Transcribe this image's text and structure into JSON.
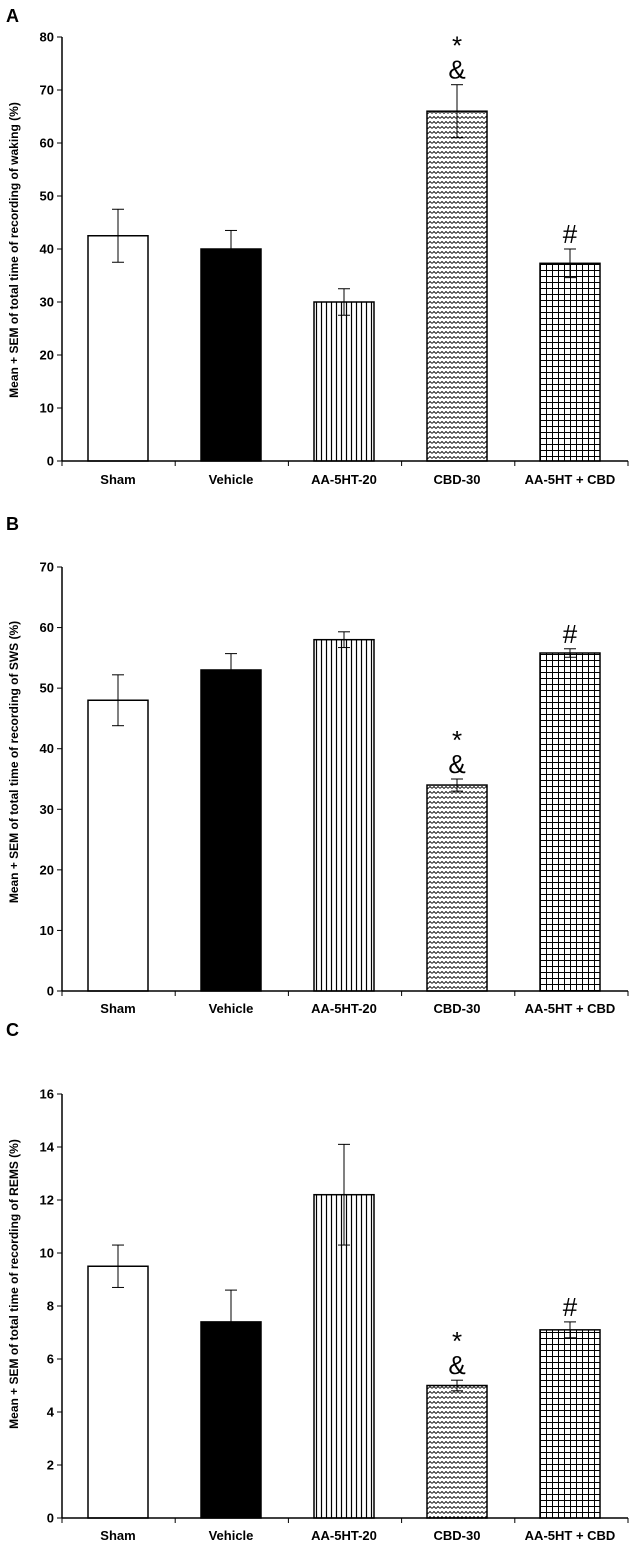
{
  "chart_data": [
    {
      "type": "bar",
      "panel": "A",
      "title": "",
      "xlabel": "",
      "ylabel": "Mean + SEM of total time of recording of waking (%)",
      "ylim": [
        0,
        80
      ],
      "yticks": [
        0,
        10,
        20,
        30,
        40,
        50,
        60,
        70,
        80
      ],
      "categories": [
        "Sham",
        "Vehicle",
        "AA-5HT-20",
        "CBD-30",
        "AA-5HT + CBD"
      ],
      "values": [
        42.5,
        40,
        30,
        66,
        37.3
      ],
      "errors": [
        5,
        3.5,
        2.5,
        5,
        2.7
      ],
      "patterns": [
        "white",
        "black",
        "vertical",
        "zigzag",
        "grid"
      ],
      "annotations": [
        [],
        [],
        [],
        [
          "*",
          "&"
        ],
        [
          "#"
        ]
      ]
    },
    {
      "type": "bar",
      "panel": "B",
      "title": "",
      "xlabel": "",
      "ylabel": "Mean + SEM of total time of recording of SWS (%)",
      "ylim": [
        0,
        70
      ],
      "yticks": [
        0,
        10,
        20,
        30,
        40,
        50,
        60,
        70
      ],
      "categories": [
        "Sham",
        "Vehicle",
        "AA-5HT-20",
        "CBD-30",
        "AA-5HT + CBD"
      ],
      "values": [
        48,
        53,
        58,
        34,
        55.8
      ],
      "errors": [
        4.2,
        2.7,
        1.3,
        1,
        0.7
      ],
      "patterns": [
        "white",
        "black",
        "vertical",
        "zigzag",
        "grid"
      ],
      "annotations": [
        [],
        [],
        [],
        [
          "*",
          "&"
        ],
        [
          "#"
        ]
      ]
    },
    {
      "type": "bar",
      "panel": "C",
      "title": "",
      "xlabel": "",
      "ylabel": "Mean + SEM of total time of recording of REMS (%)",
      "ylim": [
        0,
        16
      ],
      "yticks": [
        0,
        2,
        4,
        6,
        8,
        10,
        12,
        14,
        16
      ],
      "categories": [
        "Sham",
        "Vehicle",
        "AA-5HT-20",
        "CBD-30",
        "AA-5HT + CBD"
      ],
      "values": [
        9.5,
        7.4,
        12.2,
        5,
        7.1
      ],
      "errors": [
        0.8,
        1.2,
        1.9,
        0.2,
        0.3
      ],
      "patterns": [
        "white",
        "black",
        "vertical",
        "zigzag",
        "grid"
      ],
      "annotations": [
        [],
        [],
        [],
        [
          "*",
          "&"
        ],
        [
          "#"
        ]
      ]
    }
  ]
}
